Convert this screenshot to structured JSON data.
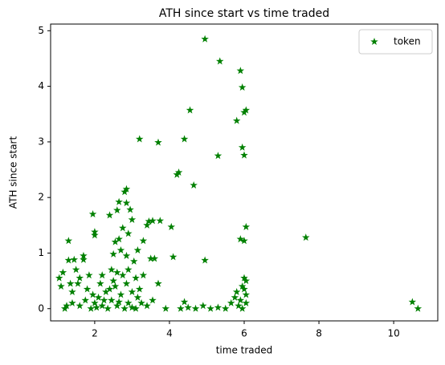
{
  "chart_data": {
    "type": "scatter",
    "title": "ATH since start vs time traded",
    "x_label": "time traded",
    "y_label": "ATH since start",
    "xlim": [
      0.82,
      11.18
    ],
    "ylim": [
      -0.22,
      5.12
    ],
    "xticks": [
      2,
      4,
      6,
      8,
      10
    ],
    "yticks": [
      0,
      1,
      2,
      3,
      4,
      5
    ],
    "legend": "upper right",
    "series": [
      {
        "name": "token",
        "color": "#008000",
        "x": [
          4.95,
          5.35,
          5.9,
          5.95,
          6.05,
          6.0,
          5.8,
          4.55,
          3.2,
          3.7,
          4.4,
          5.3,
          5.95,
          6.0,
          4.25,
          4.2,
          4.65,
          2.85,
          2.8,
          2.65,
          2.85,
          2.6,
          2.95,
          1.95,
          2.4,
          3.0,
          3.45,
          3.55,
          3.75,
          3.4,
          4.05,
          6.05,
          7.65,
          5.9,
          6.0,
          1.3,
          2.0,
          2.0,
          3.3,
          2.65,
          3.15,
          2.5,
          3.5,
          3.6,
          4.1,
          4.95,
          1.3,
          1.45,
          1.7,
          1.7,
          1.15,
          1.05,
          1.1,
          1.35,
          1.55,
          3.7,
          4.4,
          10.5,
          10.65,
          6.0,
          6.05,
          5.95,
          5.8,
          2.75,
          2.9,
          2.55,
          2.7,
          2.85,
          3.05,
          2.2,
          2.45,
          2.6,
          2.75,
          2.9,
          3.1,
          3.3,
          1.5,
          1.6,
          1.85,
          1.4,
          1.2,
          1.4,
          1.6,
          1.75,
          1.9,
          2.0,
          2.1,
          2.2,
          2.3,
          2.35,
          2.45,
          2.55,
          2.6,
          2.7,
          2.8,
          2.9,
          3.0,
          3.1,
          3.25,
          3.4,
          1.8,
          2.15,
          2.5,
          3.2,
          3.55,
          3.9,
          4.3,
          4.5,
          4.7,
          4.9,
          5.1,
          5.3,
          5.5,
          5.65,
          5.75,
          5.85,
          5.9,
          5.95,
          6.05,
          6.05,
          6.0,
          1.25,
          2.05,
          2.65,
          3.0,
          2.4,
          2.85,
          3.15,
          1.95,
          2.25
        ],
        "values": [
          4.85,
          4.45,
          4.28,
          3.98,
          3.57,
          3.53,
          3.38,
          3.57,
          3.05,
          2.99,
          3.05,
          2.75,
          2.9,
          2.76,
          2.45,
          2.41,
          2.22,
          2.15,
          2.1,
          1.92,
          1.9,
          1.77,
          1.78,
          1.7,
          1.68,
          1.6,
          1.57,
          1.58,
          1.58,
          1.5,
          1.47,
          1.47,
          1.28,
          1.25,
          1.22,
          1.22,
          1.38,
          1.32,
          1.22,
          1.25,
          1.05,
          0.98,
          0.9,
          0.9,
          0.93,
          0.87,
          0.87,
          0.88,
          0.88,
          0.95,
          0.65,
          0.55,
          0.4,
          0.45,
          0.45,
          0.45,
          0.12,
          0.12,
          0.0,
          0.55,
          0.5,
          0.4,
          0.3,
          1.45,
          1.35,
          1.2,
          1.05,
          0.95,
          0.85,
          0.6,
          0.7,
          0.65,
          0.6,
          0.7,
          0.55,
          0.6,
          0.7,
          0.55,
          0.6,
          0.3,
          0.0,
          0.1,
          0.05,
          0.15,
          0.0,
          0.1,
          0.2,
          0.05,
          0.3,
          0.0,
          0.15,
          0.4,
          0.05,
          0.25,
          0.0,
          0.1,
          0.3,
          0.0,
          0.1,
          0.05,
          0.35,
          0.45,
          0.5,
          0.35,
          0.15,
          0.0,
          0.0,
          0.02,
          0.0,
          0.05,
          0.0,
          0.02,
          0.0,
          0.1,
          0.2,
          0.05,
          0.15,
          0.0,
          0.1,
          0.25,
          0.35,
          0.05,
          0.02,
          0.12,
          0.02,
          0.35,
          0.45,
          0.2,
          0.25,
          0.15
        ]
      }
    ]
  }
}
